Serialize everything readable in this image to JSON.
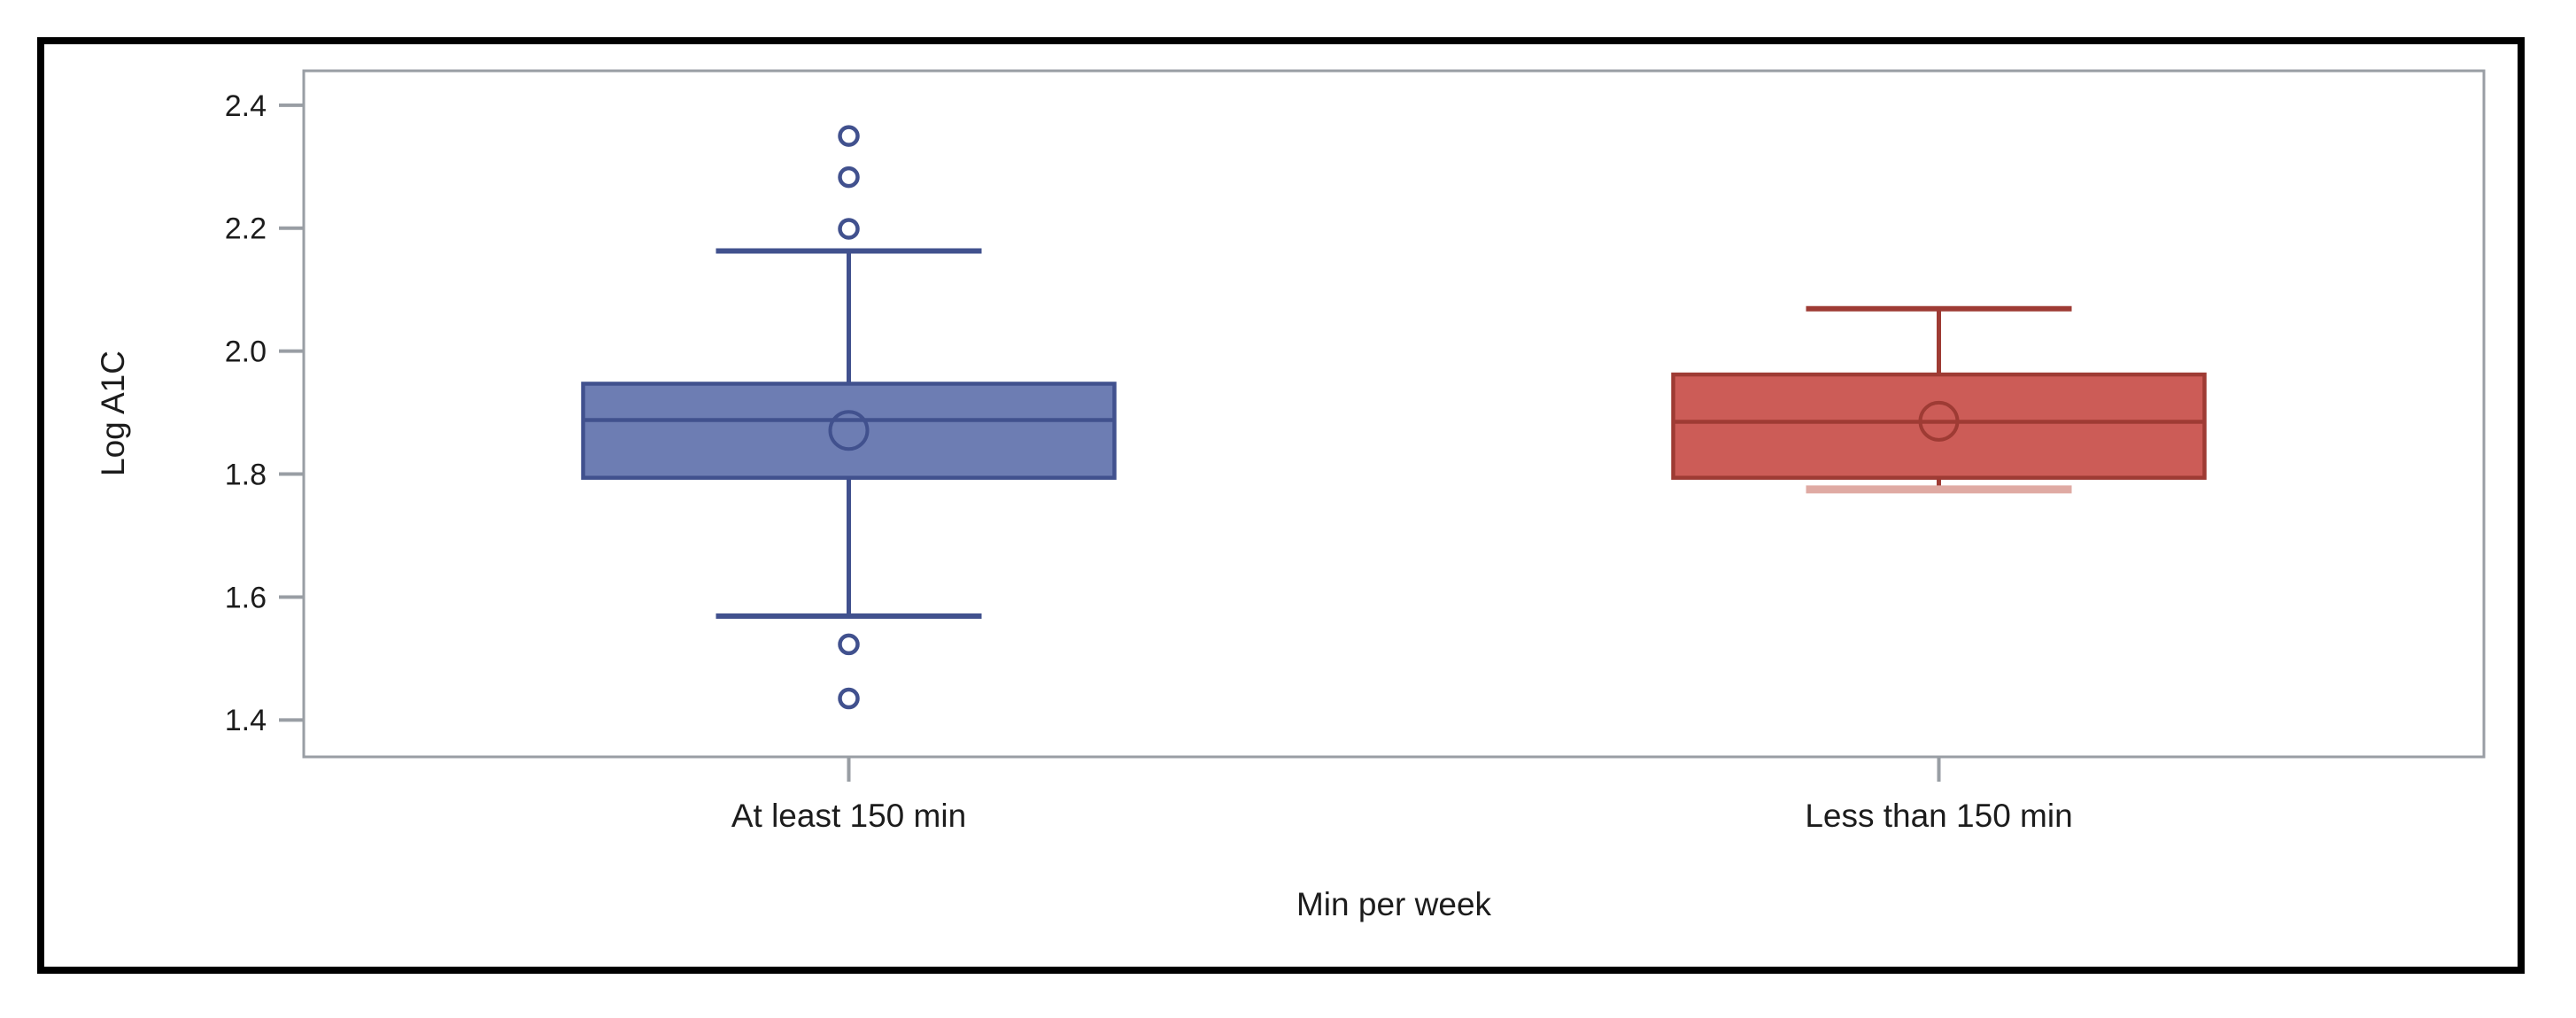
{
  "figure": {
    "background": "#ffffff",
    "border_color": "#000000"
  },
  "chart_data": {
    "type": "boxplot",
    "title": "",
    "xlabel": "Min per week",
    "ylabel": "Log A1C",
    "ylim": [
      1.34,
      2.456
    ],
    "grid": false,
    "legend": "none",
    "frame_color": "#999EA4",
    "tick_color": "#999EA4",
    "text_color": "#1C1C1C",
    "y_ticks": [
      {
        "value": 2.4,
        "label": "2.4"
      },
      {
        "value": 2.2,
        "label": "2.2"
      },
      {
        "value": 2.0,
        "label": "2.0"
      },
      {
        "value": 1.8,
        "label": "1.8"
      },
      {
        "value": 1.6,
        "label": "1.6"
      },
      {
        "value": 1.4,
        "label": "1.4"
      }
    ],
    "categories": [
      "At least 150 min",
      "Less than 150 min"
    ],
    "series": [
      {
        "name": "At least 150 min",
        "fill": "#6D7DB3",
        "stroke": "#41518E",
        "q1": 1.794,
        "median": 1.888,
        "q3": 1.947,
        "mean": 1.871,
        "whisker_low": 1.569,
        "whisker_high": 2.163,
        "outliers_high": [
          2.35,
          2.283,
          2.199
        ],
        "outliers_low": [
          1.523,
          1.435
        ],
        "lower_cap_style": "solid",
        "lower_cap_color": "#41518E"
      },
      {
        "name": "Less than 150 min",
        "fill": "#CC5C57",
        "stroke": "#9E3B34",
        "q1": 1.794,
        "median": 1.885,
        "q3": 1.962,
        "mean": 1.886,
        "whisker_low": 1.775,
        "whisker_high": 2.069,
        "outliers_high": [],
        "outliers_low": [],
        "lower_cap_style": "faded",
        "lower_cap_color": "#DFAAA3"
      }
    ]
  }
}
